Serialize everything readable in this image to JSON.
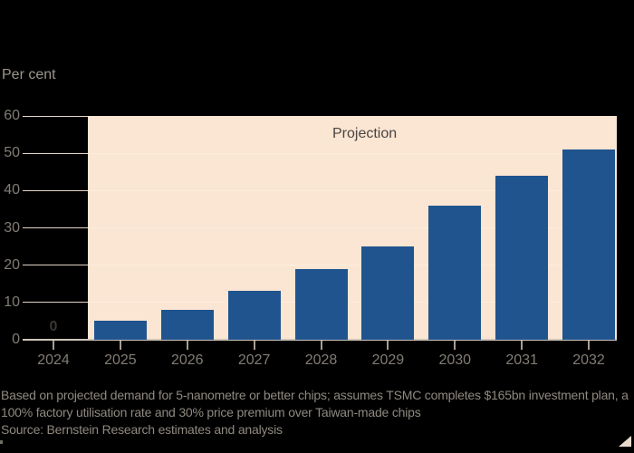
{
  "y_axis": {
    "title": "Per cent"
  },
  "annotations": {
    "projection": "Projection"
  },
  "chart_data": {
    "type": "bar",
    "title": "",
    "xlabel": "",
    "ylabel": "Per cent",
    "ylim": [
      0,
      60
    ],
    "y_ticks": [
      0,
      10,
      20,
      30,
      40,
      50,
      60
    ],
    "categories": [
      "2024",
      "2025",
      "2026",
      "2027",
      "2028",
      "2029",
      "2030",
      "2031",
      "2032"
    ],
    "values": [
      0,
      5,
      8,
      13,
      19,
      25,
      36,
      44,
      51
    ],
    "value_labels": [
      {
        "category": "2024",
        "text": "0"
      }
    ],
    "projection_band": {
      "label": "Projection",
      "from": "2025",
      "to": "2032"
    },
    "grid": true,
    "legend": "none"
  },
  "colors": {
    "background": "#000000",
    "bar": "#20548e",
    "projection_band": "#fbe5d3",
    "grid_on_black": "#e2d5c5",
    "grid_on_band": "#fdeede",
    "baseline": "#cfc5b7",
    "tick": "#a89e92",
    "axis_text": "#827c74",
    "footer_text": "#8f8980",
    "projection_text": "#4a4540",
    "zero_label_text": "#3a3733",
    "y_title_text": "#9d968c",
    "corner_triangle": "#e8dbcc"
  },
  "footer": {
    "note_line1": "Based on projected demand for 5-nanometre or better chips; assumes TSMC completes $165bn investment plan, a",
    "note_line2": "100% factory utilisation rate and 30% price premium over Taiwan-made chips",
    "source": "Source: Bernstein Research estimates and analysis"
  }
}
